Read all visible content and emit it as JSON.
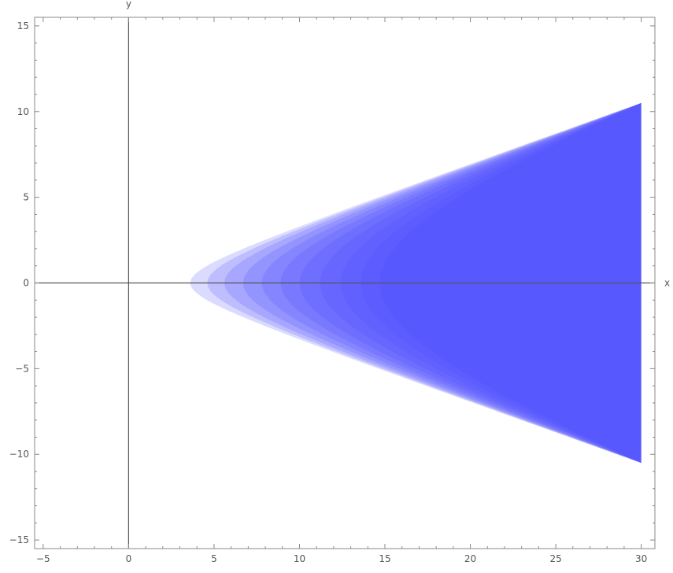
{
  "chart_data": {
    "type": "area",
    "title": "",
    "xlabel": "x",
    "ylabel": "y",
    "xlim": [
      -5.5,
      30.8
    ],
    "ylim": [
      -15.5,
      15.5
    ],
    "x_ticks": [
      -5,
      0,
      5,
      10,
      15,
      20,
      25,
      30
    ],
    "x_tick_labels": [
      "−5",
      "0",
      "5",
      "10",
      "15",
      "20",
      "25",
      "30"
    ],
    "y_ticks": [
      -15,
      -10,
      -5,
      0,
      5,
      10,
      15
    ],
    "y_tick_labels": [
      "−15",
      "−10",
      "−5",
      "0",
      "5",
      "10",
      "15"
    ],
    "grid": false,
    "axes_origin": [
      0,
      0
    ],
    "region": {
      "description_boundary": "nested hyperbolic regions x ≥ sqrt(a² + 3 y²), x ≤ 30",
      "vertex_x": [
        3.6,
        4.6,
        5.6,
        6.7,
        7.8,
        8.9,
        10.0,
        11.2,
        12.4,
        13.6,
        14.7
      ],
      "x_max": 30,
      "y_extent_at_x_max": 10.5,
      "fill_color": "#4b4bff",
      "layer_opacity": 0.2
    },
    "colors": {
      "axis": "#555555",
      "frame": "#888888",
      "fill": "#4b4bff"
    }
  }
}
